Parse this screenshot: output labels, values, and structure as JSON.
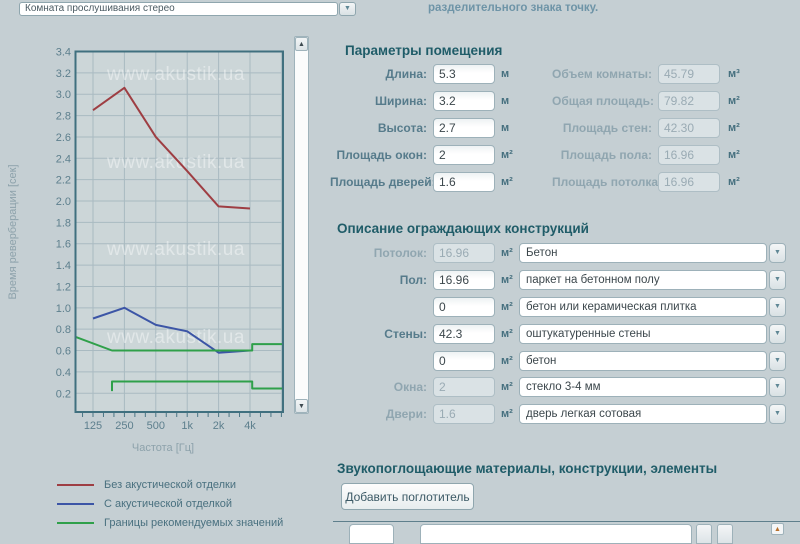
{
  "top_bar": {
    "room_select_value": "Комната прослушивания стерео",
    "hint_text": "разделительного знака точку."
  },
  "chart_data": {
    "type": "line",
    "x_scale": "log2",
    "xlabel": "Частота [Гц]",
    "ylabel": "Время реверберации [сек]",
    "x_ticks": [
      125,
      250,
      500,
      1000,
      2000,
      4000
    ],
    "x_tick_labels": [
      "125",
      "250",
      "500",
      "1k",
      "2k",
      "4k"
    ],
    "grid_freqs": [
      125,
      250,
      500,
      1000,
      2000,
      4000,
      8000
    ],
    "y_range": [
      0.2,
      3.4
    ],
    "y_tick_step": 0.2,
    "watermark": "www.akustik.ua",
    "series": [
      {
        "name": "Без акустической отделки",
        "color": "#9e3e43",
        "points": [
          [
            125,
            2.85
          ],
          [
            250,
            3.06
          ],
          [
            500,
            2.6
          ],
          [
            1000,
            2.28
          ],
          [
            2000,
            1.95
          ],
          [
            4000,
            1.93
          ]
        ]
      },
      {
        "name": "С акустической отделкой",
        "color": "#3c55a6",
        "points": [
          [
            125,
            0.9
          ],
          [
            250,
            1.0
          ],
          [
            500,
            0.84
          ],
          [
            1000,
            0.78
          ],
          [
            2000,
            0.58
          ],
          [
            4000,
            0.6
          ]
        ]
      },
      {
        "name": "Границы рекомендуемых значений",
        "color": "#2fa04a",
        "points_upper": [
          [
            84,
            0.73
          ],
          [
            190,
            0.6
          ],
          [
            4200,
            0.6
          ],
          [
            4200,
            0.66
          ],
          [
            8300,
            0.66
          ]
        ],
        "points_lower": [
          [
            190,
            0.22
          ],
          [
            190,
            0.31
          ],
          [
            4200,
            0.31
          ],
          [
            4200,
            0.245
          ],
          [
            8300,
            0.245
          ]
        ]
      }
    ]
  },
  "room_params": {
    "title": "Параметры помещения",
    "left_fields": [
      {
        "id": "length",
        "label": "Длина:",
        "value": "5.3",
        "unit": "м",
        "editable": true
      },
      {
        "id": "width",
        "label": "Ширина:",
        "value": "3.2",
        "unit": "м",
        "editable": true
      },
      {
        "id": "height",
        "label": "Высота:",
        "value": "2.7",
        "unit": "м",
        "editable": true
      },
      {
        "id": "windows-area",
        "label": "Площадь окон:",
        "value": "2",
        "unit": "м²",
        "editable": true
      },
      {
        "id": "doors-area",
        "label": "Площадь дверей:",
        "value": "1.6",
        "unit": "м²",
        "editable": true
      }
    ],
    "right_fields": [
      {
        "id": "room-volume",
        "label": "Объем комнаты:",
        "value": "45.79",
        "unit": "м³",
        "editable": false
      },
      {
        "id": "total-area",
        "label": "Общая площадь:",
        "value": "79.82",
        "unit": "м²",
        "editable": false
      },
      {
        "id": "walls-area",
        "label": "Площадь стен:",
        "value": "42.30",
        "unit": "м²",
        "editable": false
      },
      {
        "id": "floor-area",
        "label": "Площадь пола:",
        "value": "16.96",
        "unit": "м²",
        "editable": false
      },
      {
        "id": "ceiling-area",
        "label": "Площадь потолка:",
        "value": "16.96",
        "unit": "м²",
        "editable": false
      }
    ]
  },
  "constructions": {
    "title": "Описание ограждающих конструкций",
    "rows": [
      {
        "id": "ceiling",
        "label": "Потолок:",
        "value": "16.96",
        "unit": "м²",
        "editable": false,
        "material": "Бетон"
      },
      {
        "id": "floor",
        "label": "Пол:",
        "value": "16.96",
        "unit": "м²",
        "editable": true,
        "material": "паркет на бетонном полу"
      },
      {
        "id": "floor-alt",
        "label": "",
        "value": "0",
        "unit": "м²",
        "editable": true,
        "material": "бетон или керамическая плитка"
      },
      {
        "id": "walls",
        "label": "Стены:",
        "value": "42.3",
        "unit": "м²",
        "editable": true,
        "material": "оштукатуренные стены"
      },
      {
        "id": "walls-alt",
        "label": "",
        "value": "0",
        "unit": "м²",
        "editable": true,
        "material": "бетон"
      },
      {
        "id": "windows",
        "label": "Окна:",
        "value": "2",
        "unit": "м²",
        "editable": false,
        "material": "стекло 3-4 мм"
      },
      {
        "id": "doors",
        "label": "Двери:",
        "value": "1.6",
        "unit": "м²",
        "editable": false,
        "material": "дверь легкая сотовая"
      }
    ]
  },
  "absorbers": {
    "title": "Звукопоглощающие материалы, конструкции, элементы",
    "add_button": "Добавить поглотитель"
  }
}
